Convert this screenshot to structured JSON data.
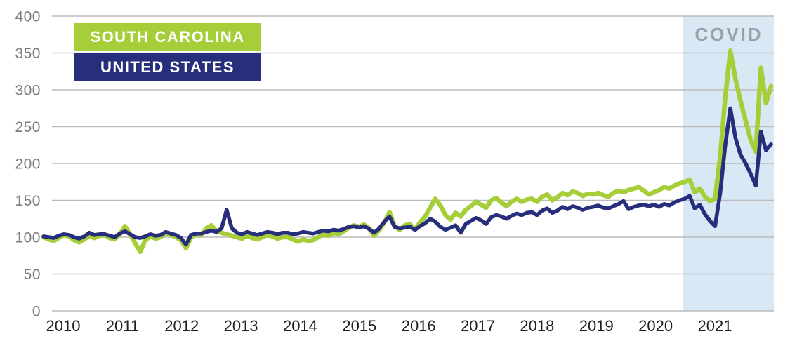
{
  "chart_data": {
    "type": "line",
    "title": "",
    "xlabel": "",
    "ylabel": "",
    "x_unit": "month",
    "x_start_year": 2010,
    "x_end_year": 2021,
    "points_per_year": 12,
    "x_tick_labels": [
      "2010",
      "2011",
      "2012",
      "2013",
      "2014",
      "2015",
      "2016",
      "2017",
      "2018",
      "2019",
      "2020",
      "2021"
    ],
    "ylim": [
      0,
      400
    ],
    "yticks": [
      400,
      350,
      300,
      250,
      200,
      150,
      100,
      50,
      0
    ],
    "grid": "horizontal",
    "gridline_color": "#bbbbbb",
    "legend_position": "top-left",
    "axis_label_color": "#7c7c7c",
    "covid_annotation": {
      "label": "COVID",
      "label_color": "#9aa0a6",
      "region_color": "#d8e8f5",
      "start_month_index": 126,
      "note": "shaded region covering the final portion of the series"
    },
    "series": [
      {
        "name": "SOUTH CAROLINA",
        "color": "#a6ce39",
        "values": [
          100,
          97,
          95,
          99,
          103,
          101,
          96,
          93,
          97,
          102,
          99,
          102,
          103,
          99,
          97,
          104,
          115,
          104,
          92,
          80,
          96,
          101,
          98,
          100,
          106,
          103,
          100,
          96,
          85,
          100,
          104,
          103,
          112,
          116,
          108,
          106,
          104,
          102,
          100,
          98,
          102,
          99,
          97,
          100,
          103,
          101,
          98,
          100,
          100,
          97,
          94,
          97,
          95,
          96,
          100,
          104,
          102,
          106,
          104,
          108,
          113,
          116,
          114,
          117,
          112,
          102,
          110,
          120,
          134,
          115,
          110,
          116,
          118,
          110,
          120,
          128,
          140,
          152,
          143,
          130,
          124,
          133,
          128,
          137,
          142,
          148,
          144,
          140,
          150,
          153,
          147,
          142,
          148,
          152,
          148,
          151,
          152,
          148,
          155,
          158,
          150,
          154,
          160,
          157,
          162,
          160,
          156,
          159,
          158,
          160,
          157,
          155,
          160,
          163,
          161,
          164,
          166,
          168,
          163,
          158,
          161,
          164,
          168,
          166,
          170,
          173,
          175,
          178,
          161,
          166,
          155,
          149,
          152,
          210,
          290,
          353,
          315,
          285,
          258,
          232,
          216,
          330,
          282,
          305
        ]
      },
      {
        "name": "UNITED STATES",
        "color": "#272e7c",
        "values": [
          101,
          100,
          99,
          102,
          104,
          103,
          100,
          98,
          101,
          106,
          103,
          104,
          104,
          102,
          100,
          105,
          108,
          104,
          100,
          99,
          101,
          104,
          102,
          103,
          107,
          105,
          103,
          99,
          90,
          103,
          105,
          105,
          107,
          109,
          107,
          112,
          137,
          112,
          106,
          104,
          107,
          105,
          103,
          105,
          107,
          106,
          104,
          106,
          106,
          104,
          105,
          107,
          106,
          105,
          107,
          109,
          108,
          110,
          109,
          111,
          114,
          115,
          113,
          115,
          111,
          106,
          112,
          121,
          128,
          114,
          112,
          113,
          114,
          110,
          115,
          119,
          125,
          121,
          114,
          110,
          113,
          116,
          106,
          118,
          122,
          126,
          123,
          118,
          127,
          130,
          128,
          125,
          129,
          132,
          130,
          133,
          134,
          130,
          136,
          139,
          133,
          136,
          141,
          138,
          142,
          140,
          137,
          140,
          141,
          143,
          140,
          139,
          142,
          145,
          149,
          138,
          141,
          143,
          144,
          142,
          144,
          141,
          145,
          143,
          147,
          150,
          152,
          156,
          139,
          144,
          131,
          122,
          115,
          160,
          225,
          275,
          235,
          212,
          200,
          186,
          170,
          243,
          218,
          226
        ]
      }
    ]
  }
}
